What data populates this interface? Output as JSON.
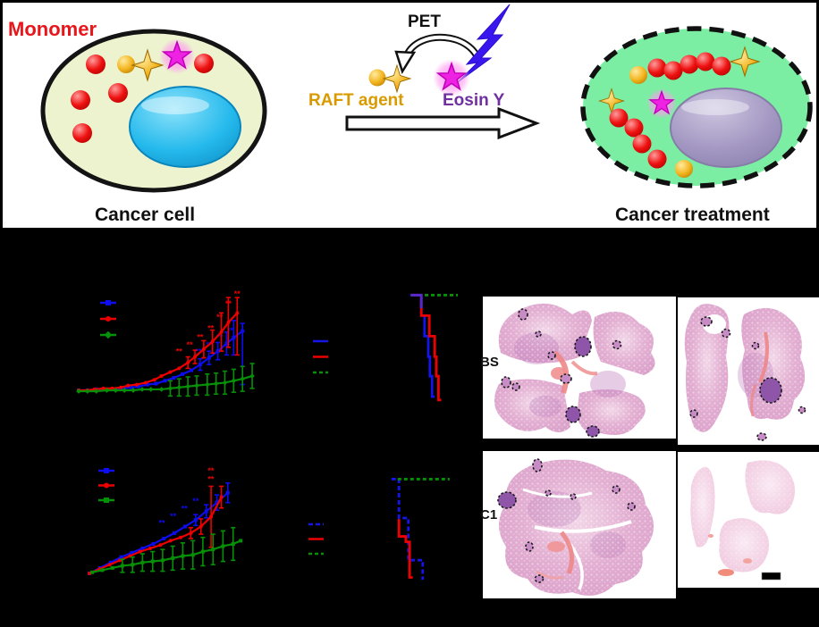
{
  "scheme": {
    "labels": {
      "monomer": "Monomer",
      "cancer_cell": "Cancer cell",
      "pet": "PET",
      "raft_agent": "RAFT agent",
      "eosin": "Eosin Y",
      "cancer_treatment": "Cancer treatment"
    },
    "colors": {
      "monomer_text": "#e8151b",
      "raft_text": "#d99a00",
      "eosin_text": "#7030a0",
      "cell_body": "#edf3cf",
      "cell_outline": "#141414",
      "nucleus_cancer_cell": "#24b9ec",
      "treated_cell_body": "#7beea3",
      "nucleus_treated_cell": "#a094c0",
      "monomer_sphere": "#ee1111",
      "raft_gold": "#f2b31c",
      "eosin_star": "#ee22e2",
      "eosin_glow": "#ff8bf0",
      "lightning_bolt": "#3a16ee"
    }
  },
  "histology": {
    "rows": [
      {
        "label": "BS",
        "tumor_nodules_outlined": true
      },
      {
        "label": "C1",
        "tumor_nodules_outlined": true
      }
    ],
    "scale_bar": true,
    "stain": {
      "tissue_pink": "#e3afd2",
      "nodule_purple": "#8e55a8",
      "vessel_red": "#ed8787"
    }
  },
  "chart_data": [
    {
      "id": "tumor-growth-top",
      "type": "line",
      "axis_text_visible": false,
      "series": [
        {
          "name": "group-blue",
          "color": "#0d0dee",
          "marker": "square",
          "width": 2.2,
          "points": [
            [
              0,
              1
            ],
            [
              0.05,
              1
            ],
            [
              0.1,
              0.99
            ],
            [
              0.15,
              0.99
            ],
            [
              0.2,
              0.99
            ],
            [
              0.25,
              0.98
            ],
            [
              0.3,
              0.97
            ],
            [
              0.34,
              0.96
            ],
            [
              0.39,
              0.94
            ],
            [
              0.44,
              0.93
            ],
            [
              0.49,
              0.9
            ],
            [
              0.54,
              0.87
            ],
            [
              0.59,
              0.83
            ],
            [
              0.64,
              0.79
            ],
            [
              0.69,
              0.73
            ],
            [
              0.74,
              0.66
            ],
            [
              0.79,
              0.59
            ],
            [
              0.84,
              0.51
            ],
            [
              0.88,
              0.45
            ],
            [
              0.93,
              0.38
            ]
          ],
          "bars": [
            [
              0.69,
              0.73,
              0.06
            ],
            [
              0.74,
              0.66,
              0.07
            ],
            [
              0.79,
              0.59,
              0.09
            ],
            [
              0.84,
              0.51,
              0.12
            ],
            [
              0.88,
              0.45,
              0.18
            ],
            [
              0.93,
              0.62,
              0.32
            ]
          ],
          "marks": [
            [
              0.68,
              0.62,
              "**"
            ],
            [
              0.74,
              0.55,
              "**"
            ],
            [
              0.8,
              0.47,
              "**"
            ],
            [
              0.86,
              0.4,
              "**"
            ]
          ]
        },
        {
          "name": "group-red",
          "color": "#ee0000",
          "marker": "circle",
          "width": 2.2,
          "points": [
            [
              0,
              1
            ],
            [
              0.05,
              1
            ],
            [
              0.09,
              0.99
            ],
            [
              0.14,
              0.98
            ],
            [
              0.19,
              0.98
            ],
            [
              0.24,
              0.97
            ],
            [
              0.28,
              0.95
            ],
            [
              0.33,
              0.94
            ],
            [
              0.38,
              0.92
            ],
            [
              0.43,
              0.89
            ],
            [
              0.47,
              0.85
            ],
            [
              0.52,
              0.81
            ],
            [
              0.57,
              0.77
            ],
            [
              0.62,
              0.71
            ],
            [
              0.66,
              0.65
            ],
            [
              0.71,
              0.57
            ],
            [
              0.76,
              0.49
            ],
            [
              0.81,
              0.39
            ],
            [
              0.85,
              0.29
            ],
            [
              0.9,
              0.19
            ]
          ],
          "bars": [
            [
              0.62,
              0.71,
              0.06
            ],
            [
              0.66,
              0.65,
              0.07
            ],
            [
              0.71,
              0.57,
              0.09
            ],
            [
              0.76,
              0.49,
              0.12
            ],
            [
              0.81,
              0.39,
              0.2
            ],
            [
              0.85,
              0.29,
              0.26
            ],
            [
              0.9,
              0.33,
              0.3
            ]
          ],
          "marks": [
            [
              0.57,
              0.62,
              "**"
            ],
            [
              0.63,
              0.55,
              "**"
            ],
            [
              0.69,
              0.47,
              "**"
            ],
            [
              0.75,
              0.38,
              "**"
            ],
            [
              0.8,
              0.26,
              "**"
            ],
            [
              0.85,
              0.12,
              "**"
            ],
            [
              0.9,
              0.02,
              "**"
            ]
          ]
        },
        {
          "name": "group-green",
          "color": "#069006",
          "marker": "diamond",
          "width": 2.2,
          "points": [
            [
              0,
              1.01
            ],
            [
              0.05,
              1.01
            ],
            [
              0.1,
              1.01
            ],
            [
              0.16,
              1
            ],
            [
              0.21,
              1
            ],
            [
              0.26,
              1
            ],
            [
              0.31,
              1
            ],
            [
              0.36,
              0.99
            ],
            [
              0.41,
              0.99
            ],
            [
              0.47,
              0.99
            ],
            [
              0.52,
              0.98
            ],
            [
              0.57,
              0.97
            ],
            [
              0.62,
              0.96
            ],
            [
              0.67,
              0.95
            ],
            [
              0.73,
              0.94
            ],
            [
              0.78,
              0.93
            ],
            [
              0.83,
              0.92
            ],
            [
              0.88,
              0.9
            ],
            [
              0.93,
              0.88
            ],
            [
              0.985,
              0.85
            ]
          ],
          "bars": [
            [
              0.52,
              0.98,
              0.08
            ],
            [
              0.57,
              0.97,
              0.09
            ],
            [
              0.62,
              0.96,
              0.1
            ],
            [
              0.67,
              0.95,
              0.1
            ],
            [
              0.73,
              0.94,
              0.11
            ],
            [
              0.78,
              0.93,
              0.11
            ],
            [
              0.83,
              0.92,
              0.12
            ],
            [
              0.88,
              0.9,
              0.12
            ],
            [
              0.93,
              0.88,
              0.13
            ],
            [
              0.985,
              0.85,
              0.13
            ]
          ],
          "marks": []
        }
      ]
    },
    {
      "id": "survival-top",
      "type": "step",
      "axis_text_visible": false,
      "series": [
        {
          "name": "group-blue",
          "color": "#1515e8",
          "marker": "none",
          "width": 2.8,
          "points": [
            [
              0.07,
              0.02
            ],
            [
              0.27,
              0.02
            ],
            [
              0.27,
              0.21
            ],
            [
              0.33,
              0.21
            ],
            [
              0.33,
              0.4
            ],
            [
              0.4,
              0.4
            ],
            [
              0.4,
              0.59
            ],
            [
              0.43,
              0.59
            ],
            [
              0.43,
              0.77
            ],
            [
              0.47,
              0.77
            ],
            [
              0.47,
              0.96
            ],
            [
              0.52,
              0.96
            ]
          ]
        },
        {
          "name": "group-red",
          "color": "#ee0000",
          "marker": "none",
          "width": 2.8,
          "points": [
            [
              0.27,
              0.08
            ],
            [
              0.27,
              0.21
            ],
            [
              0.42,
              0.21
            ],
            [
              0.42,
              0.4
            ],
            [
              0.52,
              0.4
            ],
            [
              0.52,
              0.59
            ],
            [
              0.55,
              0.59
            ],
            [
              0.55,
              0.77
            ],
            [
              0.59,
              0.77
            ],
            [
              0.59,
              0.99
            ],
            [
              0.64,
              0.99
            ]
          ]
        },
        {
          "name": "group-green",
          "color": "#069006",
          "marker": "none",
          "width": 2.8,
          "dash": "4 3",
          "points": [
            [
              0.1,
              0.02
            ],
            [
              0.95,
              0.02
            ]
          ]
        },
        {
          "name": "overlap",
          "color": "#5a28c8",
          "marker": "none",
          "width": 3,
          "in_legend": false,
          "points": [
            [
              0.07,
              0.02
            ],
            [
              0.27,
              0.02
            ],
            [
              0.27,
              0.14
            ]
          ]
        }
      ]
    },
    {
      "id": "tumor-growth-bottom",
      "type": "line",
      "axis_text_visible": false,
      "series": [
        {
          "name": "group-blue",
          "color": "#0d0dee",
          "marker": "square",
          "width": 2.2,
          "points": [
            [
              0,
              1
            ],
            [
              0.066,
              0.95
            ],
            [
              0.132,
              0.9
            ],
            [
              0.198,
              0.85
            ],
            [
              0.264,
              0.81
            ],
            [
              0.33,
              0.77
            ],
            [
              0.396,
              0.73
            ],
            [
              0.462,
              0.68
            ],
            [
              0.528,
              0.63
            ],
            [
              0.594,
              0.57
            ],
            [
              0.66,
              0.51
            ],
            [
              0.726,
              0.43
            ],
            [
              0.792,
              0.35
            ],
            [
              0.86,
              0.26
            ]
          ],
          "bars": [
            [
              0.66,
              0.51,
              0.05
            ],
            [
              0.726,
              0.43,
              0.06
            ],
            [
              0.792,
              0.35,
              0.07
            ],
            [
              0.86,
              0.26,
              0.09
            ]
          ],
          "marks": [
            [
              0.45,
              0.56,
              "**"
            ],
            [
              0.52,
              0.5,
              "**"
            ],
            [
              0.59,
              0.43,
              "**"
            ],
            [
              0.66,
              0.36,
              "**"
            ]
          ]
        },
        {
          "name": "group-red",
          "color": "#ee0000",
          "marker": "circle",
          "width": 2.2,
          "points": [
            [
              0,
              1
            ],
            [
              0.063,
              0.96
            ],
            [
              0.126,
              0.92
            ],
            [
              0.189,
              0.88
            ],
            [
              0.252,
              0.84
            ],
            [
              0.315,
              0.8
            ],
            [
              0.378,
              0.77
            ],
            [
              0.441,
              0.74
            ],
            [
              0.504,
              0.7
            ],
            [
              0.567,
              0.67
            ],
            [
              0.63,
              0.63
            ],
            [
              0.693,
              0.57
            ],
            [
              0.756,
              0.48
            ],
            [
              0.82,
              0.3
            ]
          ],
          "bars": [
            [
              0.63,
              0.63,
              0.05
            ],
            [
              0.693,
              0.57,
              0.07
            ],
            [
              0.756,
              0.48,
              0.28
            ],
            [
              0.82,
              0.3,
              0.1
            ]
          ],
          "marks": [
            [
              0.755,
              0.08,
              "**"
            ],
            [
              0.755,
              0.16,
              "**"
            ]
          ]
        },
        {
          "name": "group-green",
          "color": "#069006",
          "marker": "square",
          "width": 2.2,
          "points": [
            [
              0.017,
              0.99
            ],
            [
              0.08,
              0.97
            ],
            [
              0.143,
              0.95
            ],
            [
              0.205,
              0.93
            ],
            [
              0.268,
              0.92
            ],
            [
              0.33,
              0.9
            ],
            [
              0.393,
              0.89
            ],
            [
              0.455,
              0.88
            ],
            [
              0.518,
              0.86
            ],
            [
              0.58,
              0.84
            ],
            [
              0.643,
              0.83
            ],
            [
              0.705,
              0.8
            ],
            [
              0.768,
              0.78
            ],
            [
              0.83,
              0.75
            ],
            [
              0.893,
              0.73
            ],
            [
              0.94,
              0.7
            ]
          ],
          "bars": [
            [
              0.205,
              0.93,
              0.06
            ],
            [
              0.268,
              0.92,
              0.07
            ],
            [
              0.33,
              0.9,
              0.08
            ],
            [
              0.393,
              0.89,
              0.09
            ],
            [
              0.455,
              0.88,
              0.1
            ],
            [
              0.518,
              0.86,
              0.11
            ],
            [
              0.58,
              0.84,
              0.12
            ],
            [
              0.643,
              0.83,
              0.13
            ],
            [
              0.705,
              0.8,
              0.13
            ],
            [
              0.768,
              0.78,
              0.14
            ],
            [
              0.83,
              0.75,
              0.14
            ],
            [
              0.893,
              0.73,
              0.15
            ]
          ],
          "marks": []
        }
      ]
    },
    {
      "id": "survival-bottom",
      "type": "step",
      "axis_text_visible": false,
      "series": [
        {
          "name": "group-blue",
          "color": "#1515e8",
          "marker": "none",
          "width": 2.8,
          "dash": "5 3",
          "points": [
            [
              0.04,
              0.02
            ],
            [
              0.16,
              0.02
            ],
            [
              0.16,
              0.38
            ],
            [
              0.31,
              0.38
            ],
            [
              0.31,
              0.77
            ],
            [
              0.54,
              0.77
            ],
            [
              0.54,
              0.95
            ]
          ]
        },
        {
          "name": "group-red",
          "color": "#ee0000",
          "marker": "none",
          "width": 2.8,
          "points": [
            [
              0.16,
              0.39
            ],
            [
              0.16,
              0.55
            ],
            [
              0.27,
              0.55
            ],
            [
              0.27,
              0.6
            ],
            [
              0.33,
              0.6
            ],
            [
              0.33,
              0.93
            ],
            [
              0.38,
              0.93
            ]
          ]
        },
        {
          "name": "group-green",
          "color": "#069006",
          "marker": "none",
          "width": 2.8,
          "dash": "4 3",
          "points": [
            [
              0.14,
              0.02
            ],
            [
              0.97,
              0.02
            ]
          ]
        }
      ]
    }
  ]
}
